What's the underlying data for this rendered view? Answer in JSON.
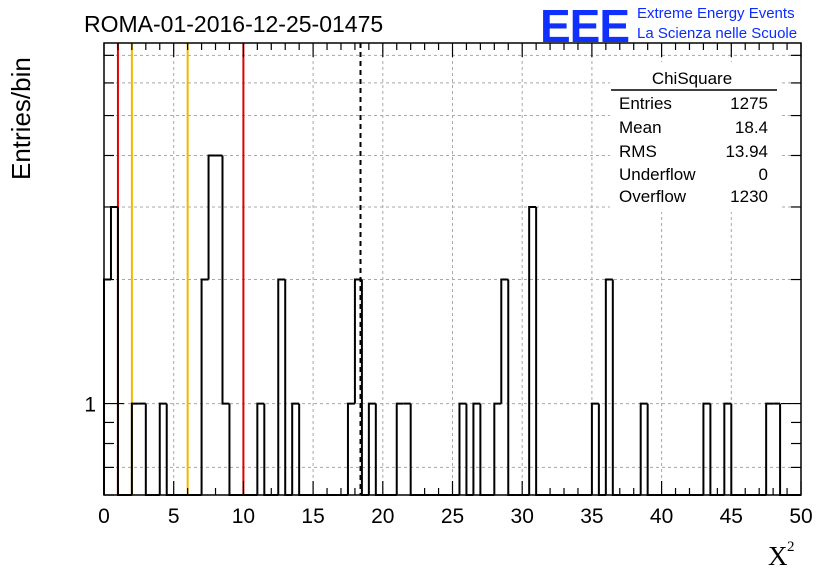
{
  "header": {
    "run_id": "ROMA-01-2016-12-25-01475"
  },
  "logo": {
    "mark": "EEE",
    "line1": "Extreme Energy Events",
    "line2": "La Scienza nelle Scuole",
    "color": "#1030ff"
  },
  "stats_box": {
    "title": "ChiSquare",
    "rows": [
      {
        "label": "Entries",
        "value": "1275"
      },
      {
        "label": "Mean",
        "value": "18.4"
      },
      {
        "label": "RMS",
        "value": "13.94"
      },
      {
        "label": "Underflow",
        "value": "0"
      },
      {
        "label": "Overflow",
        "value": "1230"
      }
    ]
  },
  "chart_data": {
    "type": "bar",
    "style": "step-histogram",
    "title": "ROMA-01-2016-12-25-01475",
    "xlabel": "X",
    "xlabel_superscript": "2",
    "ylabel": "Entries/bin",
    "xlim": [
      0,
      50
    ],
    "ylim": [
      0.6,
      7.5
    ],
    "ylog": true,
    "grid": true,
    "bin_width": 0.5,
    "x_ticks": [
      "0",
      "5",
      "10",
      "15",
      "20",
      "25",
      "30",
      "35",
      "40",
      "45",
      "50"
    ],
    "y_tick_labels": [
      {
        "value": 1,
        "label": "1"
      }
    ],
    "series": [
      {
        "values": [
          2,
          3,
          0,
          0,
          1,
          1,
          0,
          0,
          1,
          0,
          0,
          0,
          0,
          0,
          2,
          4,
          4,
          1,
          0,
          0,
          0,
          0,
          1,
          0,
          0,
          2,
          0,
          1,
          0,
          0,
          0,
          0,
          0,
          0,
          0,
          1,
          2,
          0,
          1,
          0,
          0,
          0,
          1,
          1,
          0,
          0,
          0,
          0,
          0,
          0,
          0,
          1,
          0,
          1,
          0,
          0,
          1,
          2,
          0,
          0,
          0,
          3,
          0,
          0,
          0,
          0,
          0,
          0,
          0,
          0,
          1,
          0,
          2,
          0,
          0,
          0,
          0,
          1,
          0,
          0,
          0,
          0,
          0,
          0,
          0,
          0,
          1,
          0,
          0,
          1,
          0,
          0,
          0,
          0,
          0,
          1,
          1,
          0,
          0,
          0
        ]
      }
    ],
    "reference_lines": [
      {
        "x": 1,
        "color": "#e00000"
      },
      {
        "x": 2,
        "color": "#f0b800"
      },
      {
        "x": 6,
        "color": "#f0b800"
      },
      {
        "x": 10,
        "color": "#e00000"
      },
      {
        "x": 18.4,
        "color": "#000000",
        "dashed": true
      }
    ]
  }
}
